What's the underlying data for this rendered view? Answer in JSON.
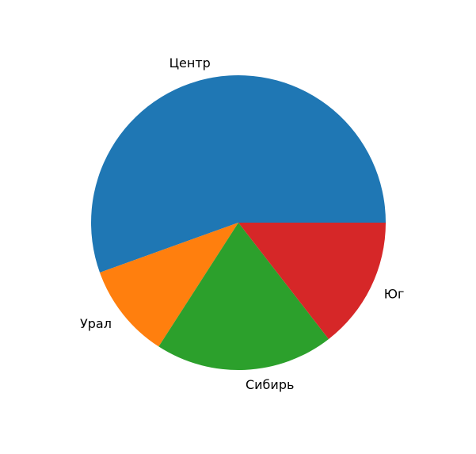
{
  "chart_data": {
    "type": "pie",
    "title": "",
    "categories": [
      "Центр",
      "Урал",
      "Сибирь",
      "Юг"
    ],
    "values": [
      55.5,
      10.4,
      19.6,
      14.5
    ],
    "colors": [
      "#1f77b4",
      "#ff7f0e",
      "#2ca02c",
      "#d62728"
    ],
    "start_angle_deg": 0,
    "direction": "counterclockwise",
    "legend": "none"
  }
}
